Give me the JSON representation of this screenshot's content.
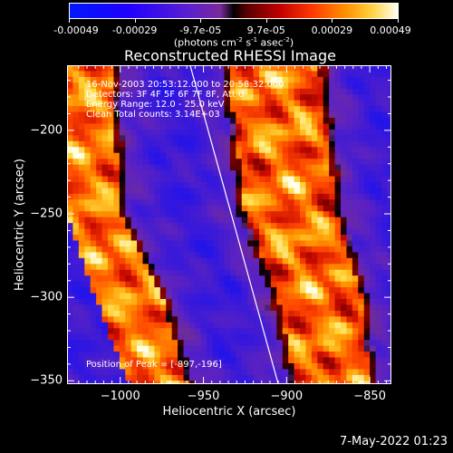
{
  "colorbar": {
    "tick_labels": [
      "-0.00049",
      "-0.00029",
      "-9.7e-05",
      "9.7e-05",
      "0.00029",
      "0.00049"
    ],
    "units_prefix": "(photons cm",
    "units_sup1": "-2",
    "units_mid1": " s",
    "units_sup2": "-1",
    "units_mid2": " asec",
    "units_sup3": "-2",
    "units_suffix": ")"
  },
  "chart_data": {
    "type": "heatmap",
    "title": "Reconstructed RHESSI Image",
    "xlabel": "Heliocentric X (arcsec)",
    "ylabel": "Heliocentric Y (arcsec)",
    "xlim": [
      -1032,
      -837
    ],
    "ylim": [
      -352,
      -161
    ],
    "x_ticks": [
      -1000,
      -950,
      -900,
      -850
    ],
    "y_ticks": [
      -200,
      -250,
      -300,
      -350
    ],
    "x_tick_labels": [
      "−1000",
      "−950",
      "−900",
      "−850"
    ],
    "y_tick_labels": [
      "−200",
      "−250",
      "−300",
      "−350"
    ],
    "color_range": [
      -0.00049,
      0.00049
    ],
    "limb_line": [
      [
        -958,
        -161
      ],
      [
        -905,
        -352
      ]
    ],
    "bright_band_left": [
      [
        -1032,
        -170,
        -1005
      ],
      [
        -1032,
        -250,
        -1000
      ],
      [
        -1015,
        -300,
        -975
      ],
      [
        -995,
        -352,
        -960
      ]
    ],
    "bright_band_right": [
      [
        -935,
        -165,
        -880
      ],
      [
        -925,
        -250,
        -870
      ],
      [
        -905,
        -300,
        -855
      ],
      [
        -895,
        -352,
        -850
      ]
    ],
    "peak": [
      -897,
      -196
    ]
  },
  "info": {
    "time_range": "16-Nov-2003 20:53:12.000 to 20:58:32.000",
    "detectors": "Detectors: 3F 4F 5F 6F 7F 8F, Att 0",
    "energy_range": "Energy Range: 12.0 - 25.0 keV",
    "method": "Clean     Total counts: 3.14E+03",
    "peak_position": "Position of Peak = [-897,-196]"
  },
  "footer": {
    "timestamp": "7-May-2022 01:23"
  }
}
